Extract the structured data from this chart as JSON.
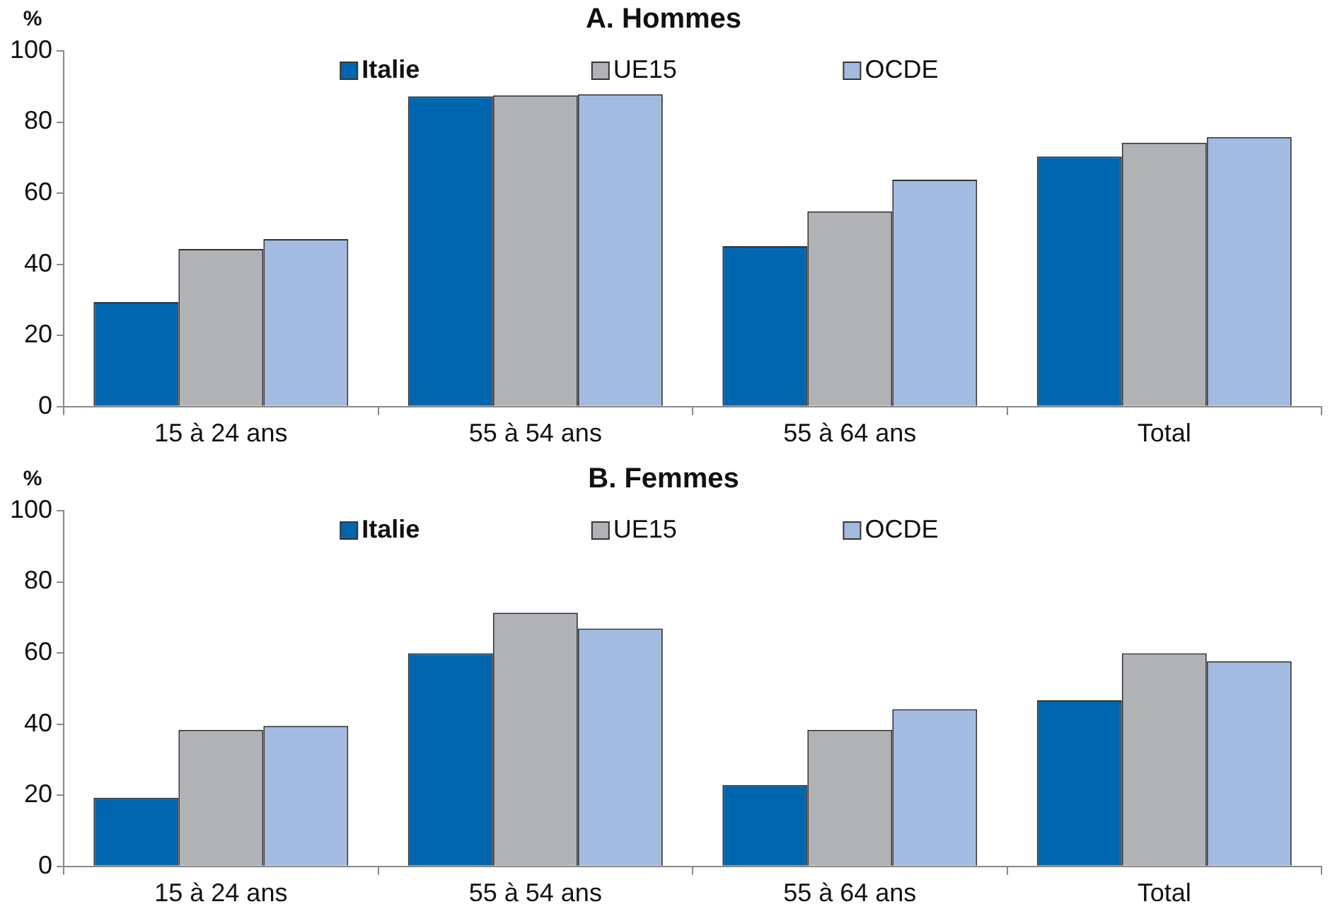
{
  "chart_data": [
    {
      "type": "bar",
      "title": "A. Hommes",
      "ylabel": "%",
      "categories": [
        "15 à 24 ans",
        "55 à 54 ans",
        "55 à 64 ans",
        "Total"
      ],
      "series": [
        {
          "name": "Italie",
          "color": "#0066b0",
          "values": [
            29.4,
            87.2,
            45.1,
            70.3
          ]
        },
        {
          "name": "UE15",
          "color": "#b1b2b6",
          "values": [
            44.3,
            87.5,
            54.9,
            74.2
          ]
        },
        {
          "name": "OCDE",
          "color": "#a3bbe0",
          "values": [
            47.1,
            87.8,
            63.8,
            75.8
          ]
        }
      ],
      "ylim": [
        0,
        100
      ],
      "yticks": [
        0,
        20,
        40,
        60,
        80,
        100
      ],
      "grid": false,
      "legend": "top"
    },
    {
      "type": "bar",
      "title": "B. Femmes",
      "ylabel": "%",
      "categories": [
        "15 à 24 ans",
        "55 à 54 ans",
        "55 à 64 ans",
        "Total"
      ],
      "series": [
        {
          "name": "Italie",
          "color": "#0066b0",
          "values": [
            19.3,
            59.9,
            22.9,
            46.7
          ]
        },
        {
          "name": "UE15",
          "color": "#b1b2b6",
          "values": [
            38.4,
            71.3,
            38.4,
            59.9
          ]
        },
        {
          "name": "OCDE",
          "color": "#a3bbe0",
          "values": [
            39.5,
            66.9,
            44.2,
            57.7
          ]
        }
      ],
      "ylim": [
        0,
        100
      ],
      "yticks": [
        0,
        20,
        40,
        60,
        80,
        100
      ],
      "grid": false,
      "legend": "top"
    }
  ]
}
